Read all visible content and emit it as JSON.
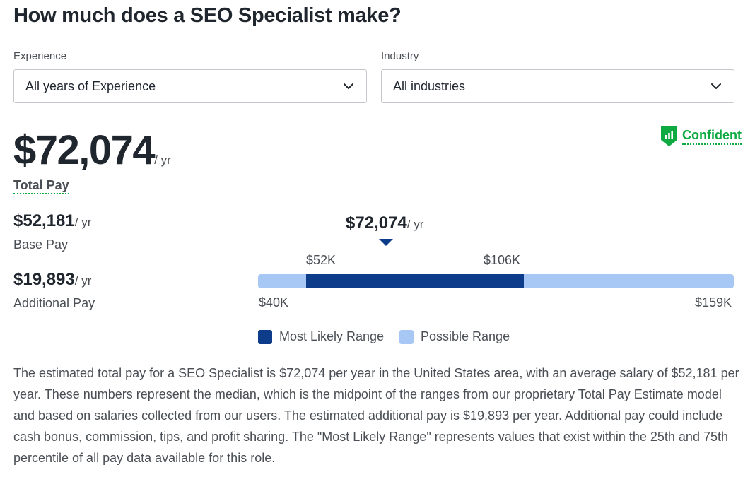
{
  "page": {
    "title": "How much does a SEO Specialist make?"
  },
  "filters": {
    "experience": {
      "label": "Experience",
      "value": "All years of Experience"
    },
    "industry": {
      "label": "Industry",
      "value": "All industries"
    }
  },
  "confidence": {
    "label": "Confident",
    "color": "#0caa41"
  },
  "total_pay": {
    "amount": "$72,074",
    "unit": "/ yr",
    "label": "Total Pay"
  },
  "base_pay": {
    "amount": "$52,181",
    "unit": "/ yr",
    "label": "Base Pay"
  },
  "additional_pay": {
    "amount": "$19,893",
    "unit": "/ yr",
    "label": "Additional Pay"
  },
  "range": {
    "median_label": "$72,074",
    "median_unit": "/ yr",
    "likely_low": "$52K",
    "likely_high": "$106K",
    "possible_low": "$40K",
    "possible_high": "$159K"
  },
  "chart_data": {
    "type": "bar",
    "min": 40000,
    "likely_low": 52000,
    "median": 72074,
    "likely_high": 106000,
    "max": 159000,
    "colors": {
      "most_likely": "#0d3d8a",
      "possible": "#a7c8f4"
    },
    "legend": [
      "Most Likely Range",
      "Possible Range"
    ]
  },
  "legend": {
    "most_likely": "Most Likely Range",
    "possible": "Possible Range"
  },
  "description": "The estimated total pay for a SEO Specialist is $72,074 per year in the United States area, with an average salary of $52,181 per year. These numbers represent the median, which is the midpoint of the ranges from our proprietary Total Pay Estimate model and based on salaries collected from our users. The estimated additional pay is $19,893 per year. Additional pay could include cash bonus, commission, tips, and profit sharing. The \"Most Likely Range\" represents values that exist within the 25th and 75th percentile of all pay data available for this role."
}
